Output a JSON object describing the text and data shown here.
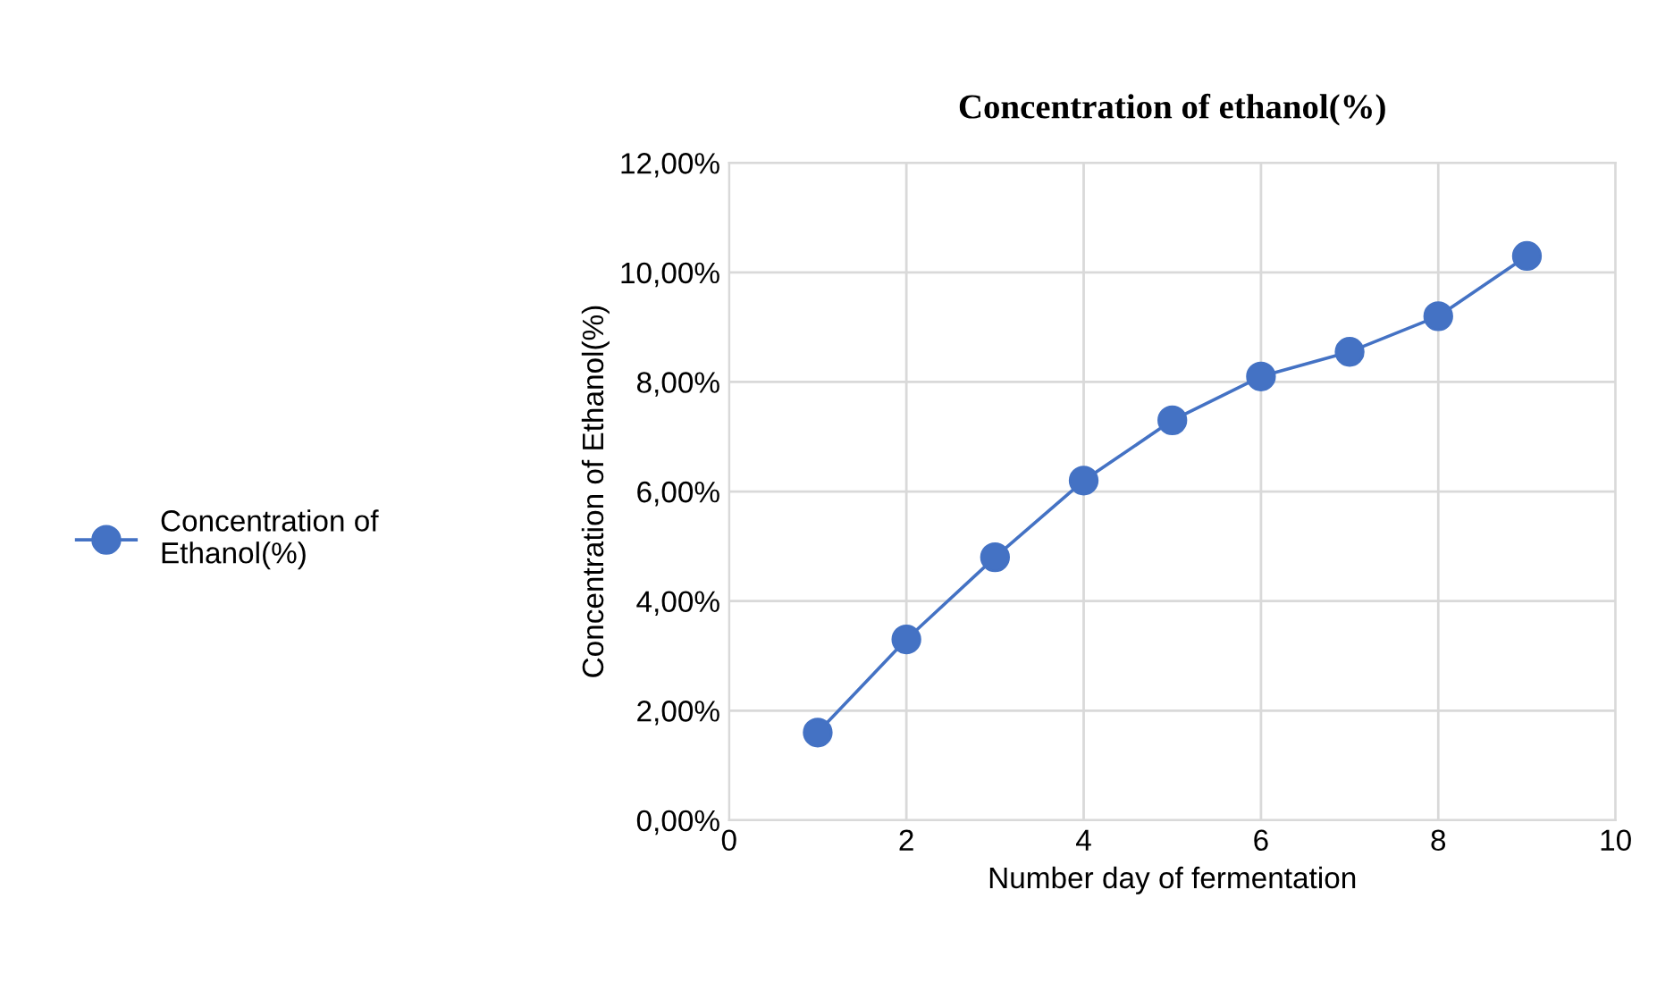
{
  "chart_data": {
    "type": "line",
    "title": "Concentration of ethanol(%)",
    "xlabel": "Number day of fermentation",
    "ylabel": "Concentration of Ethanol(%)",
    "x": [
      1,
      2,
      3,
      4,
      5,
      6,
      7,
      8,
      9
    ],
    "series": [
      {
        "name": "Concentration of\nEthanol(%)",
        "color": "#4472c4",
        "values": [
          1.6,
          3.3,
          4.8,
          6.2,
          7.3,
          8.1,
          8.55,
          9.2,
          10.3
        ]
      }
    ],
    "xlim": [
      0,
      10
    ],
    "xticks": [
      0,
      2,
      4,
      6,
      8,
      10
    ],
    "ylim": [
      0,
      12
    ],
    "yticks": [
      {
        "value": 0,
        "label": "0,00%"
      },
      {
        "value": 2,
        "label": "2,00%"
      },
      {
        "value": 4,
        "label": "4,00%"
      },
      {
        "value": 6,
        "label": "6,00%"
      },
      {
        "value": 8,
        "label": "8,00%"
      },
      {
        "value": 10,
        "label": "10,00%"
      },
      {
        "value": 12,
        "label": "12,00%"
      }
    ],
    "grid": true,
    "legend": "left",
    "marker": "circle",
    "line_style": "solid"
  }
}
